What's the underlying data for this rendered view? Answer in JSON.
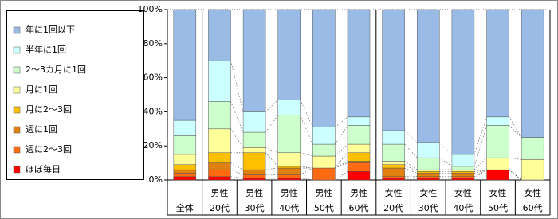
{
  "chart_data": {
    "type": "stacked_bar_100",
    "categories": [
      [
        "全体"
      ],
      [
        "男性",
        "20代"
      ],
      [
        "男性",
        "30代"
      ],
      [
        "男性",
        "40代"
      ],
      [
        "男性",
        "50代"
      ],
      [
        "男性",
        "60代"
      ],
      [
        "女性",
        "20代"
      ],
      [
        "女性",
        "30代"
      ],
      [
        "女性",
        "40代"
      ],
      [
        "女性",
        "50代"
      ],
      [
        "女性",
        "60代"
      ]
    ],
    "series": [
      {
        "name": "ほぼ毎日",
        "color": "#ff0000",
        "values": [
          2,
          2,
          1,
          1,
          0,
          5,
          1,
          1,
          1,
          6,
          0
        ]
      },
      {
        "name": "週に2～3回",
        "color": "#ff6a13",
        "values": [
          2,
          4,
          2,
          2,
          7,
          5,
          1,
          1,
          1,
          0,
          0
        ]
      },
      {
        "name": "週に1回",
        "color": "#e0800e",
        "values": [
          2,
          4,
          3,
          4,
          0,
          1,
          5,
          2,
          2,
          0,
          0
        ]
      },
      {
        "name": "月に2～3回",
        "color": "#ffc000",
        "values": [
          3,
          6,
          10,
          1,
          0,
          5,
          2,
          1,
          1,
          0,
          0
        ]
      },
      {
        "name": "月に1回",
        "color": "#ffff99",
        "values": [
          6,
          14,
          3,
          8,
          7,
          5,
          2,
          1,
          1,
          7,
          12
        ]
      },
      {
        "name": "2～3カ月に1回",
        "color": "#ccffcc",
        "values": [
          11,
          16,
          9,
          22,
          7,
          11,
          10,
          7,
          2,
          19,
          13
        ]
      },
      {
        "name": "半年に1回",
        "color": "#ccffff",
        "values": [
          9,
          24,
          12,
          9,
          10,
          5,
          8,
          9,
          7,
          5,
          0
        ]
      },
      {
        "name": "年に1回以下",
        "color": "#99bbe6",
        "values": [
          65,
          30,
          60,
          53,
          69,
          63,
          71,
          78,
          85,
          63,
          75
        ]
      }
    ],
    "ylim": [
      0,
      100
    ],
    "yticks": [
      {
        "value": 0,
        "label": "0%"
      },
      {
        "value": 20,
        "label": "20%"
      },
      {
        "value": 40,
        "label": "40%"
      },
      {
        "value": 60,
        "label": "60%"
      },
      {
        "value": 80,
        "label": "80%"
      },
      {
        "value": 100,
        "label": "100%"
      }
    ]
  }
}
